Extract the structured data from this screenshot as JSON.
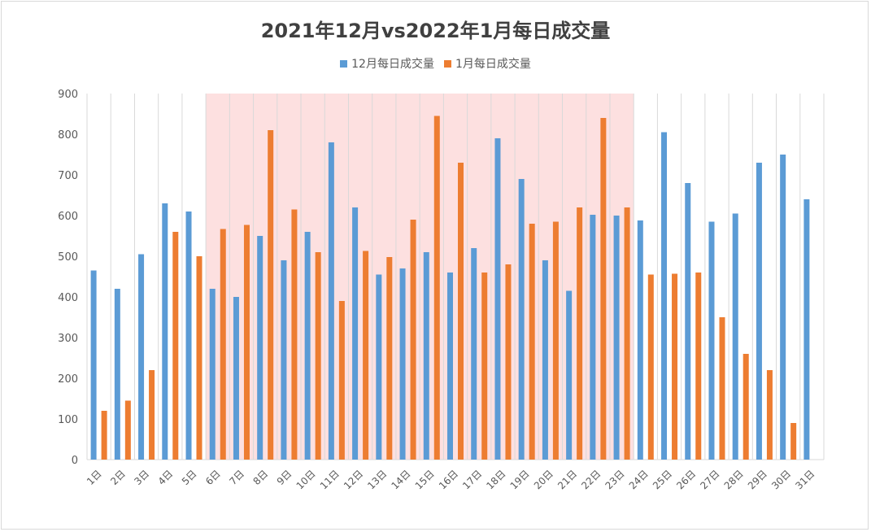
{
  "colors": {
    "s1": "#5b9bd5",
    "s2": "#ed7d31",
    "highlight": "#fde0e0",
    "grid": "#d9d9d9"
  },
  "chart_data": {
    "type": "bar",
    "title": "2021年12月vs2022年1月每日成交量",
    "categories": [
      "1日",
      "2日",
      "3日",
      "4日",
      "5日",
      "6日",
      "7日",
      "8日",
      "9日",
      "10日",
      "11日",
      "12日",
      "13日",
      "14日",
      "15日",
      "16日",
      "17日",
      "18日",
      "19日",
      "20日",
      "21日",
      "22日",
      "23日",
      "24日",
      "25日",
      "26日",
      "27日",
      "28日",
      "29日",
      "30日",
      "31日"
    ],
    "series": [
      {
        "name": "12月每日成交量",
        "values": [
          465,
          420,
          505,
          630,
          610,
          420,
          400,
          550,
          490,
          560,
          780,
          620,
          455,
          470,
          510,
          460,
          520,
          790,
          690,
          490,
          415,
          602,
          600,
          588,
          805,
          680,
          585,
          605,
          730,
          750,
          640
        ]
      },
      {
        "name": "1月每日成交量",
        "values": [
          120,
          145,
          220,
          560,
          500,
          567,
          577,
          810,
          615,
          510,
          390,
          513,
          498,
          590,
          845,
          730,
          460,
          480,
          580,
          585,
          620,
          840,
          620,
          455,
          457,
          460,
          350,
          260,
          220,
          90,
          null
        ]
      }
    ],
    "ylim": [
      0,
      900
    ],
    "yticks": [
      "0",
      "100",
      "200",
      "300",
      "400",
      "500",
      "600",
      "700",
      "800",
      "900"
    ],
    "highlight_range": [
      "6日",
      "23日"
    ],
    "legend_position": "top",
    "grid": "vertical"
  }
}
